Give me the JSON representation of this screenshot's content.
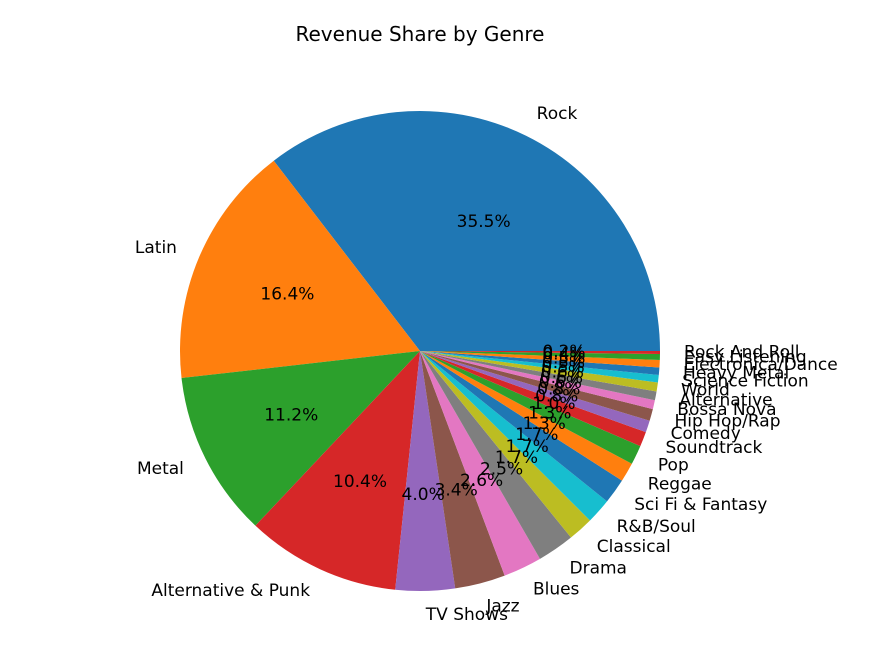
{
  "chart_data": {
    "type": "pie",
    "title": "Revenue Share by Genre",
    "start_angle_deg": 0,
    "direction": "counterclockwise",
    "slices": [
      {
        "label": "Rock",
        "value": 35.5,
        "pct_label": "35.5%",
        "color": "#1f77b4"
      },
      {
        "label": "Latin",
        "value": 16.4,
        "pct_label": "16.4%",
        "color": "#ff7f0e"
      },
      {
        "label": "Metal",
        "value": 11.2,
        "pct_label": "11.2%",
        "color": "#2ca02c"
      },
      {
        "label": "Alternative & Punk",
        "value": 10.4,
        "pct_label": "10.4%",
        "color": "#d62728"
      },
      {
        "label": "TV Shows",
        "value": 4.0,
        "pct_label": "4.0%",
        "color": "#9467bd"
      },
      {
        "label": "Jazz",
        "value": 3.4,
        "pct_label": "3.4%",
        "color": "#8c564b"
      },
      {
        "label": "Blues",
        "value": 2.6,
        "pct_label": "2.6%",
        "color": "#e377c2"
      },
      {
        "label": "Drama",
        "value": 2.5,
        "pct_label": "2.5%",
        "color": "#7f7f7f"
      },
      {
        "label": "Classical",
        "value": 1.7,
        "pct_label": "1.7%",
        "color": "#bcbd22"
      },
      {
        "label": "R&B/Soul",
        "value": 1.7,
        "pct_label": "1.7%",
        "color": "#17becf"
      },
      {
        "label": "Sci Fi & Fantasy",
        "value": 1.7,
        "pct_label": "1.7%",
        "color": "#1f77b4"
      },
      {
        "label": "Reggae",
        "value": 1.3,
        "pct_label": "1.3%",
        "color": "#ff7f0e"
      },
      {
        "label": "Pop",
        "value": 1.3,
        "pct_label": "1.3%",
        "color": "#2ca02c"
      },
      {
        "label": "Soundtrack",
        "value": 1.0,
        "pct_label": "1.0%",
        "color": "#d62728"
      },
      {
        "label": "Comedy",
        "value": 0.8,
        "pct_label": "0.8%",
        "color": "#9467bd"
      },
      {
        "label": "Hip Hop/Rap",
        "value": 0.8,
        "pct_label": "0.8%",
        "color": "#8c564b"
      },
      {
        "label": "Bossa Nova",
        "value": 0.6,
        "pct_label": "0.6%",
        "color": "#e377c2"
      },
      {
        "label": "Alternative",
        "value": 0.6,
        "pct_label": "0.6%",
        "color": "#7f7f7f"
      },
      {
        "label": "World",
        "value": 0.6,
        "pct_label": "0.6%",
        "color": "#bcbd22"
      },
      {
        "label": "Science Fiction",
        "value": 0.5,
        "pct_label": "0.5%",
        "color": "#17becf"
      },
      {
        "label": "Heavy Metal",
        "value": 0.5,
        "pct_label": "0.5%",
        "color": "#1f77b4"
      },
      {
        "label": "Electronica/Dance",
        "value": 0.5,
        "pct_label": "0.5%",
        "color": "#ff7f0e"
      },
      {
        "label": "Easy Listening",
        "value": 0.4,
        "pct_label": "0.4%",
        "color": "#2ca02c"
      },
      {
        "label": "Rock And Roll",
        "value": 0.2,
        "pct_label": "0.2%",
        "color": "#d62728"
      }
    ]
  }
}
